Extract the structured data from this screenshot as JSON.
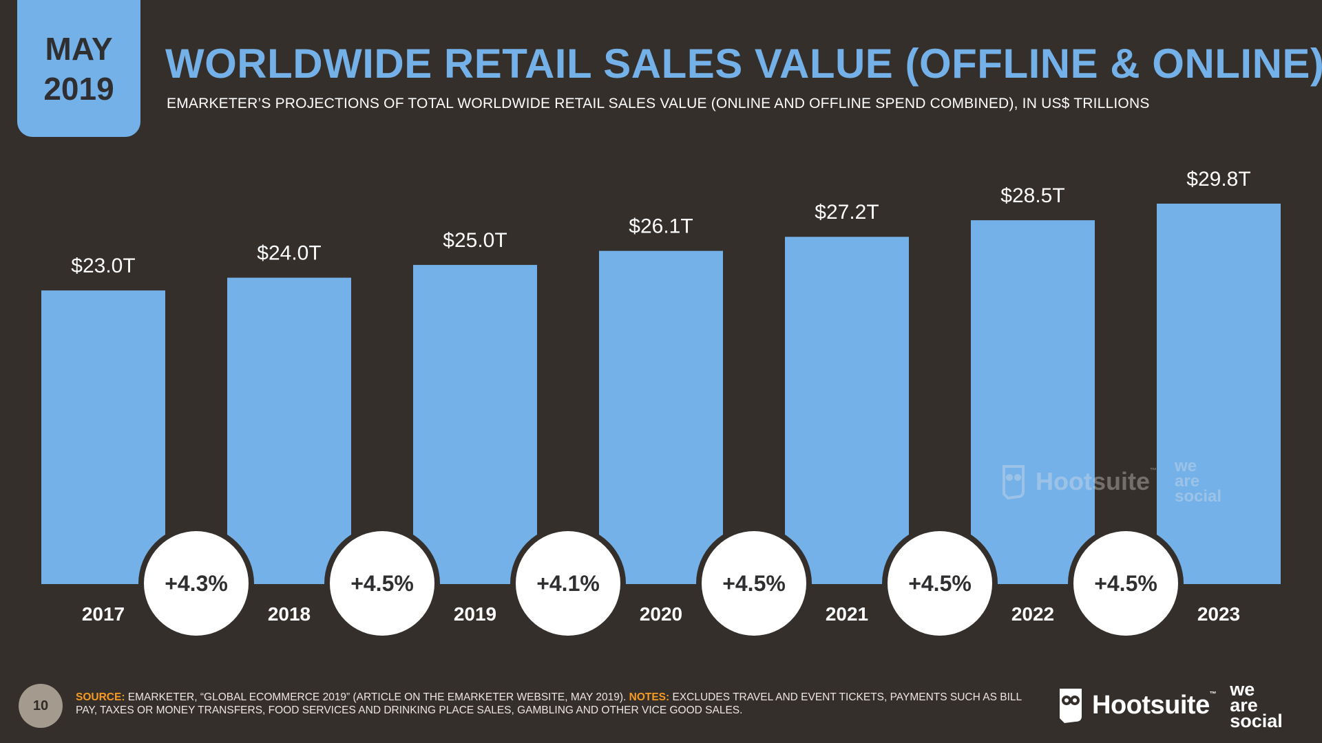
{
  "header": {
    "month": "MAY",
    "year": "2019",
    "title": "WORLDWIDE RETAIL SALES VALUE (OFFLINE & ONLINE)",
    "subtitle": "EMARKETER’S PROJECTIONS OF TOTAL WORLDWIDE RETAIL SALES VALUE (ONLINE AND OFFLINE SPEND COMBINED), IN US$ TRILLIONS"
  },
  "chart_data": {
    "type": "bar",
    "title": "WORLDWIDE RETAIL SALES VALUE (OFFLINE & ONLINE)",
    "subtitle": "EMARKETER’S PROJECTIONS OF TOTAL WORLDWIDE RETAIL SALES VALUE (ONLINE AND OFFLINE SPEND COMBINED), IN US$ TRILLIONS",
    "categories": [
      "2017",
      "2018",
      "2019",
      "2020",
      "2021",
      "2022",
      "2023"
    ],
    "values": [
      23.0,
      24.0,
      25.0,
      26.1,
      27.2,
      28.5,
      29.8
    ],
    "value_labels": [
      "$23.0T",
      "$24.0T",
      "$25.0T",
      "$26.1T",
      "$27.2T",
      "$28.5T",
      "$29.8T"
    ],
    "growth_labels": [
      "+4.3%",
      "+4.5%",
      "+4.1%",
      "+4.5%",
      "+4.5%",
      "+4.5%"
    ],
    "grid": false,
    "legend": "none",
    "colors": {
      "bar": "#74b1e8",
      "background": "#352f2c",
      "growth_circle": "#ffffff",
      "growth_text": "#2f2f31"
    }
  },
  "watermark": {
    "brand": "Hootsuite",
    "tm": "™",
    "partner_lines": [
      "we",
      "are",
      "social"
    ]
  },
  "footer": {
    "page_number": "10",
    "source_label": "SOURCE:",
    "source_text": "EMARKETER, “GLOBAL ECOMMERCE 2019” (ARTICLE ON THE EMARKETER WEBSITE, MAY 2019).",
    "notes_label": "NOTES:",
    "notes_text": "EXCLUDES TRAVEL AND EVENT TICKETS, PAYMENTS SUCH AS BILL PAY, TAXES OR MONEY TRANSFERS, FOOD SERVICES AND DRINKING PLACE SALES, GAMBLING AND OTHER VICE GOOD SALES."
  },
  "brand": {
    "name": "Hootsuite",
    "tm": "™",
    "partner_lines": [
      "we",
      "are",
      "social"
    ]
  },
  "icons": {
    "brand_logo": "owl-icon"
  }
}
